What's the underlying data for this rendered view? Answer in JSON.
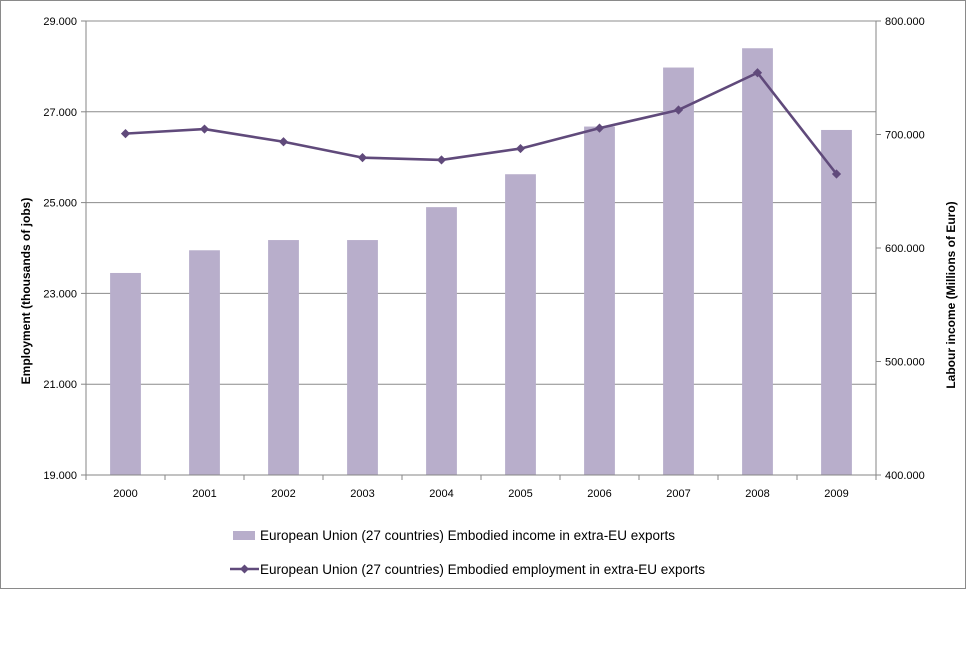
{
  "chart_data": {
    "type": "bar+line",
    "categories": [
      "2000",
      "2001",
      "2002",
      "2003",
      "2004",
      "2005",
      "2006",
      "2007",
      "2008",
      "2009"
    ],
    "series": [
      {
        "name": "European Union (27 countries) Embodied income in extra-EU exports",
        "type": "bar",
        "axis": "right",
        "values": [
          578000,
          598000,
          607000,
          607000,
          636000,
          665000,
          707000,
          759000,
          776000,
          704000
        ]
      },
      {
        "name": "European Union (27 countries) Embodied employment in extra-EU exports",
        "type": "line",
        "axis": "left",
        "values": [
          26520,
          26620,
          26340,
          25990,
          25940,
          26190,
          26640,
          27040,
          27860,
          25630
        ]
      }
    ],
    "y_left": {
      "label": "Employment (thousands of jobs)",
      "range": [
        19000,
        29000
      ],
      "ticks": [
        19000,
        21000,
        23000,
        25000,
        27000,
        29000
      ],
      "tick_labels": [
        "19.000",
        "21.000",
        "23.000",
        "25.000",
        "27.000",
        "29.000"
      ]
    },
    "y_right": {
      "label": "Labour income (Millions of Euro)",
      "range": [
        400000,
        800000
      ],
      "ticks": [
        400000,
        500000,
        600000,
        700000,
        800000
      ],
      "tick_labels": [
        "400.000",
        "500.000",
        "600.000",
        "700.000",
        "800.000"
      ]
    },
    "grid": true,
    "legend_position": "bottom",
    "colors": {
      "bar": "#b8aecb",
      "line": "#604a7b",
      "grid": "#8c8c8c",
      "axis": "#868686"
    }
  }
}
